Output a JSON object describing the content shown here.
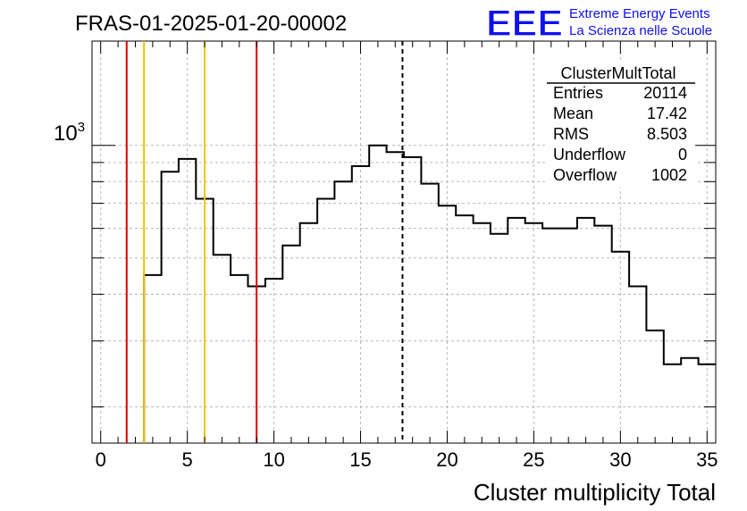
{
  "chart_data": {
    "type": "histogram",
    "title": "FRAS-01-2025-01-20-00002",
    "xlabel": "Cluster multiplicity Total",
    "ylabel": "",
    "xlim": [
      -0.5,
      35.5
    ],
    "ylim": [
      160,
      1900
    ],
    "y_scale": "log",
    "y_tick_label": "10^3",
    "y_tick_base": "10",
    "y_tick_exp": "3",
    "x_ticks": [
      0,
      5,
      10,
      15,
      20,
      25,
      30,
      35
    ],
    "x_tick_labels": [
      "0",
      "5",
      "10",
      "15",
      "20",
      "25",
      "30",
      "35"
    ],
    "grid": true,
    "bin_width": 1,
    "bin_centers": [
      0,
      1,
      2,
      3,
      4,
      5,
      6,
      7,
      8,
      9,
      10,
      11,
      12,
      13,
      14,
      15,
      16,
      17,
      18,
      19,
      20,
      21,
      22,
      23,
      24,
      25,
      26,
      27,
      28,
      29,
      30,
      31,
      32,
      33,
      34,
      35
    ],
    "values": [
      0,
      0,
      0,
      450,
      850,
      920,
      720,
      510,
      450,
      420,
      440,
      540,
      620,
      720,
      800,
      880,
      1000,
      960,
      930,
      790,
      690,
      650,
      620,
      580,
      640,
      620,
      600,
      600,
      640,
      610,
      520,
      420,
      320,
      260,
      270,
      260
    ],
    "vertical_lines": [
      {
        "x": 1.5,
        "color": "#dd0000",
        "style": "solid"
      },
      {
        "x": 2.5,
        "color": "#f2c200",
        "style": "solid"
      },
      {
        "x": 6.0,
        "color": "#f2c200",
        "style": "solid"
      },
      {
        "x": 9.0,
        "color": "#dd0000",
        "style": "solid"
      },
      {
        "x": 17.42,
        "color": "#000000",
        "style": "dashed"
      }
    ],
    "stats_box": {
      "name": "ClusterMultTotal",
      "rows": [
        {
          "label": "Entries",
          "value": "20114"
        },
        {
          "label": "Mean",
          "value": "17.42"
        },
        {
          "label": "RMS",
          "value": "8.503"
        },
        {
          "label": "Underflow",
          "value": "0"
        },
        {
          "label": "Overflow",
          "value": "1002"
        }
      ],
      "placement": "top-right"
    }
  },
  "logo": {
    "mark": "EEE",
    "line1": "Extreme Energy Events",
    "line2": "La Scienza nelle Scuole",
    "color": "#1010ee"
  }
}
